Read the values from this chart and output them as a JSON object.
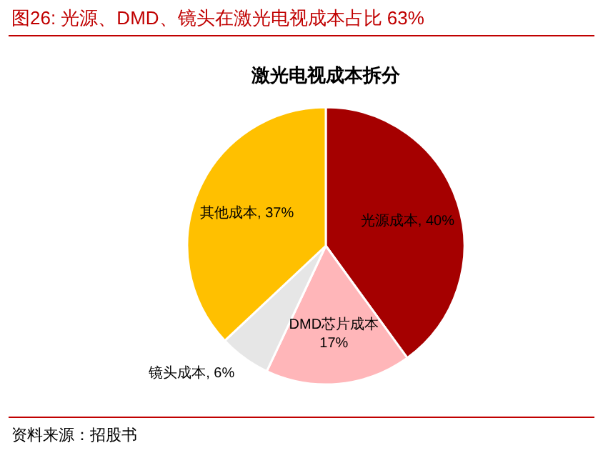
{
  "chart_data": {
    "type": "pie",
    "title": "图26:    光源、DMD、镜头在激光电视成本占比 63%",
    "subtitle": "激光电视成本拆分",
    "categories": [
      "光源成本",
      "DMD芯片成本",
      "镜头成本",
      "其他成本"
    ],
    "values": [
      40,
      17,
      6,
      37
    ],
    "colors": [
      "#a50000",
      "#ffb6b9",
      "#e6e6e6",
      "#ffc000"
    ],
    "value_labels": [
      "40%",
      "17%",
      "6%",
      "37%"
    ],
    "annotations": [
      "资料来源：招股书"
    ]
  }
}
